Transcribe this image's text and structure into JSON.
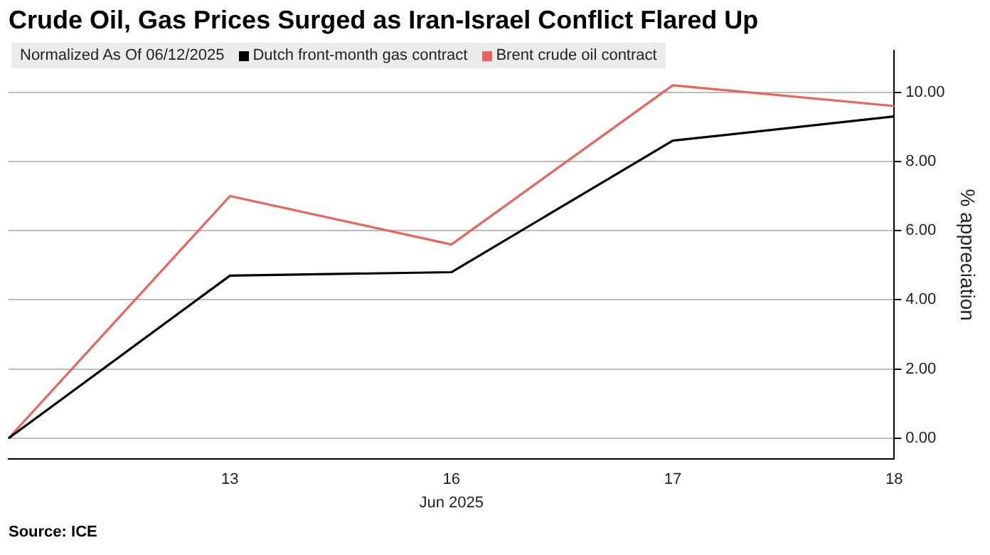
{
  "chart_data": {
    "type": "line",
    "title": "Crude Oil, Gas Prices Surged as Iran-Israel Conflict Flared Up",
    "categories": [
      null,
      "13",
      "16",
      "17",
      "18"
    ],
    "xlabel": "Jun 2025",
    "ylabel": "% appreciation",
    "legend_title": "Normalized As Of 06/12/2025",
    "series": [
      {
        "name": "Dutch front-month gas contract",
        "color": "#000000",
        "values": [
          0,
          4.7,
          4.8,
          8.6,
          9.3
        ]
      },
      {
        "name": "Brent crude oil contract",
        "color": "#e8645c",
        "values": [
          0,
          7.0,
          5.6,
          10.2,
          9.6
        ]
      }
    ],
    "ylim": [
      -0.6,
      11.2
    ],
    "yticks": [
      {
        "value": 0,
        "label": "0.00"
      },
      {
        "value": 2,
        "label": "2.00"
      },
      {
        "value": 4,
        "label": "4.00"
      },
      {
        "value": 6,
        "label": "6.00"
      },
      {
        "value": 8,
        "label": "8.00"
      },
      {
        "value": 10,
        "label": "10.00"
      }
    ],
    "grid": "y",
    "legend": "top left",
    "marker": "none",
    "line_style": "solid",
    "annotations": [
      "Source: ICE"
    ]
  }
}
